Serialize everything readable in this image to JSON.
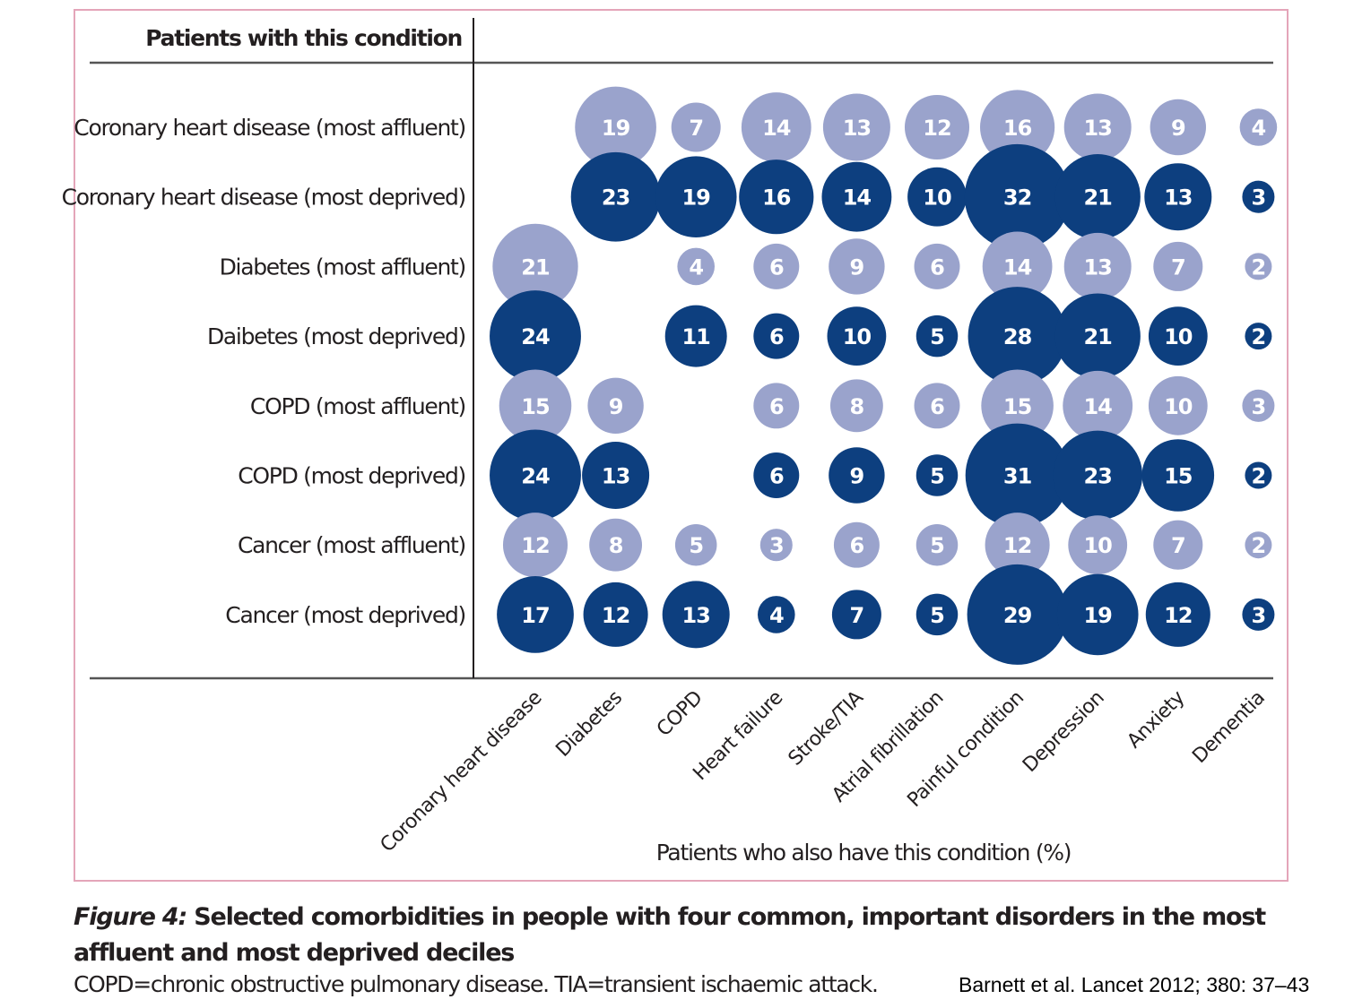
{
  "chart_data": {
    "type": "bubble",
    "row_header": "Patients with this condition",
    "xlabel": "Patients who also have this condition (%)",
    "rows": [
      "Coronary heart disease (most affluent)",
      "Coronary heart disease (most deprived)",
      "Diabetes (most affluent)",
      "Daibetes (most deprived)",
      "COPD (most affluent)",
      "COPD (most deprived)",
      "Cancer (most affluent)",
      "Cancer (most deprived)"
    ],
    "row_group": [
      "affluent",
      "deprived",
      "affluent",
      "deprived",
      "affluent",
      "deprived",
      "affluent",
      "deprived"
    ],
    "columns": [
      "Coronary heart disease",
      "Diabetes",
      "COPD",
      "Heart failure",
      "Stroke/TIA",
      "Atrial fibrillation",
      "Painful condition",
      "Depression",
      "Anxiety",
      "Dementia"
    ],
    "values": [
      [
        null,
        19,
        7,
        14,
        13,
        12,
        16,
        13,
        9,
        4
      ],
      [
        null,
        23,
        19,
        16,
        14,
        10,
        32,
        21,
        13,
        3
      ],
      [
        21,
        null,
        4,
        6,
        9,
        6,
        14,
        13,
        7,
        2
      ],
      [
        24,
        null,
        11,
        6,
        10,
        5,
        28,
        21,
        10,
        2
      ],
      [
        15,
        9,
        null,
        6,
        8,
        6,
        15,
        14,
        10,
        3
      ],
      [
        24,
        13,
        null,
        6,
        9,
        5,
        31,
        23,
        15,
        2
      ],
      [
        12,
        8,
        5,
        3,
        6,
        5,
        12,
        10,
        7,
        2
      ],
      [
        17,
        12,
        13,
        4,
        7,
        5,
        29,
        19,
        12,
        3
      ]
    ],
    "colors": {
      "affluent": "#9aa3cc",
      "deprived": "#0d3f7f",
      "frame": "#e4a5b9",
      "text": "#231f20"
    }
  },
  "caption": {
    "label": "Figure 4:",
    "title": "Selected comorbidities in people with four common, important disorders in the most affluent and most deprived deciles",
    "note": "COPD=chronic obstructive pulmonary disease. TIA=transient ischaemic attack."
  },
  "citation": "Barnett et al. Lancet 2012; 380: 37–43"
}
